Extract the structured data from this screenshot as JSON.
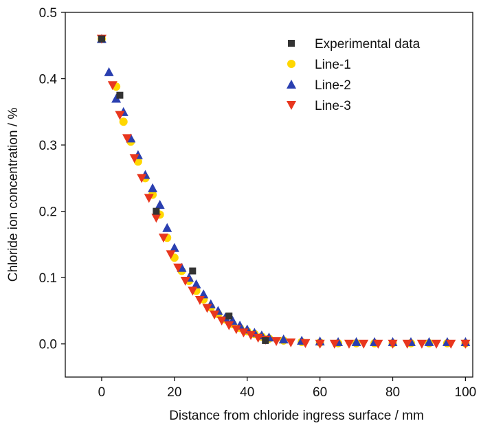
{
  "chart_data": {
    "type": "scatter",
    "xlabel": "Distance from chloride ingress surface / mm",
    "ylabel": "Chloride ion concentration / %",
    "xlim": [
      -10,
      102
    ],
    "ylim": [
      -0.05,
      0.5
    ],
    "xticks": [
      0,
      20,
      40,
      60,
      80,
      100
    ],
    "yticks": [
      0.0,
      0.1,
      0.2,
      0.3,
      0.4,
      0.5
    ],
    "xtick_labels": [
      "0",
      "20",
      "40",
      "60",
      "80",
      "100"
    ],
    "ytick_labels": [
      "0.0",
      "0.1",
      "0.2",
      "0.3",
      "0.4",
      "0.5"
    ],
    "grid": false,
    "legend_position": "top-right",
    "series": [
      {
        "name": "Experimental data",
        "marker": "square",
        "color": "#333333",
        "x": [
          0,
          5,
          15,
          25,
          35,
          45
        ],
        "y": [
          0.46,
          0.375,
          0.2,
          0.11,
          0.042,
          0.005
        ]
      },
      {
        "name": "Line-1",
        "marker": "circle",
        "color": "#ffd700",
        "x": [
          0,
          4,
          6,
          8,
          10,
          12,
          14,
          16,
          18,
          20,
          22,
          24,
          26,
          28,
          30,
          32,
          34,
          36,
          38,
          40,
          42,
          44,
          46,
          50,
          55,
          60,
          65,
          70,
          75,
          80,
          85,
          90,
          95,
          100
        ],
        "y": [
          0.46,
          0.388,
          0.335,
          0.305,
          0.275,
          0.25,
          0.225,
          0.195,
          0.16,
          0.13,
          0.11,
          0.095,
          0.08,
          0.067,
          0.055,
          0.045,
          0.037,
          0.03,
          0.024,
          0.019,
          0.015,
          0.011,
          0.008,
          0.005,
          0.003,
          0.002,
          0.001,
          0.001,
          0.001,
          0.001,
          0.001,
          0.001,
          0.001,
          0.001
        ]
      },
      {
        "name": "Line-2",
        "marker": "triangle-up",
        "color": "#2a3fb0",
        "x": [
          0,
          2,
          4,
          6,
          8,
          10,
          12,
          14,
          16,
          18,
          20,
          22,
          24,
          26,
          28,
          30,
          32,
          34,
          36,
          38,
          40,
          42,
          44,
          46,
          50,
          55,
          60,
          65,
          70,
          75,
          80,
          85,
          90,
          95,
          100
        ],
        "y": [
          0.46,
          0.41,
          0.37,
          0.35,
          0.31,
          0.285,
          0.255,
          0.235,
          0.21,
          0.175,
          0.145,
          0.115,
          0.1,
          0.09,
          0.075,
          0.06,
          0.05,
          0.04,
          0.035,
          0.028,
          0.022,
          0.017,
          0.013,
          0.01,
          0.007,
          0.005,
          0.004,
          0.003,
          0.003,
          0.003,
          0.003,
          0.003,
          0.003,
          0.003,
          0.003
        ]
      },
      {
        "name": "Line-3",
        "marker": "triangle-down",
        "color": "#e8361e",
        "x": [
          0,
          3,
          5,
          7,
          9,
          11,
          13,
          15,
          17,
          19,
          21,
          23,
          25,
          27,
          29,
          31,
          33,
          35,
          37,
          39,
          41,
          43,
          45,
          48,
          52,
          56,
          60,
          64,
          68,
          72,
          76,
          80,
          84,
          88,
          92,
          96,
          100
        ],
        "y": [
          0.46,
          0.39,
          0.345,
          0.31,
          0.28,
          0.25,
          0.22,
          0.19,
          0.16,
          0.135,
          0.115,
          0.095,
          0.08,
          0.066,
          0.054,
          0.044,
          0.035,
          0.028,
          0.022,
          0.017,
          0.013,
          0.009,
          0.006,
          0.004,
          0.002,
          0.001,
          0.0,
          0.0,
          0.0,
          0.0,
          0.0,
          0.0,
          0.0,
          0.0,
          0.0,
          0.0,
          0.0
        ]
      }
    ]
  }
}
